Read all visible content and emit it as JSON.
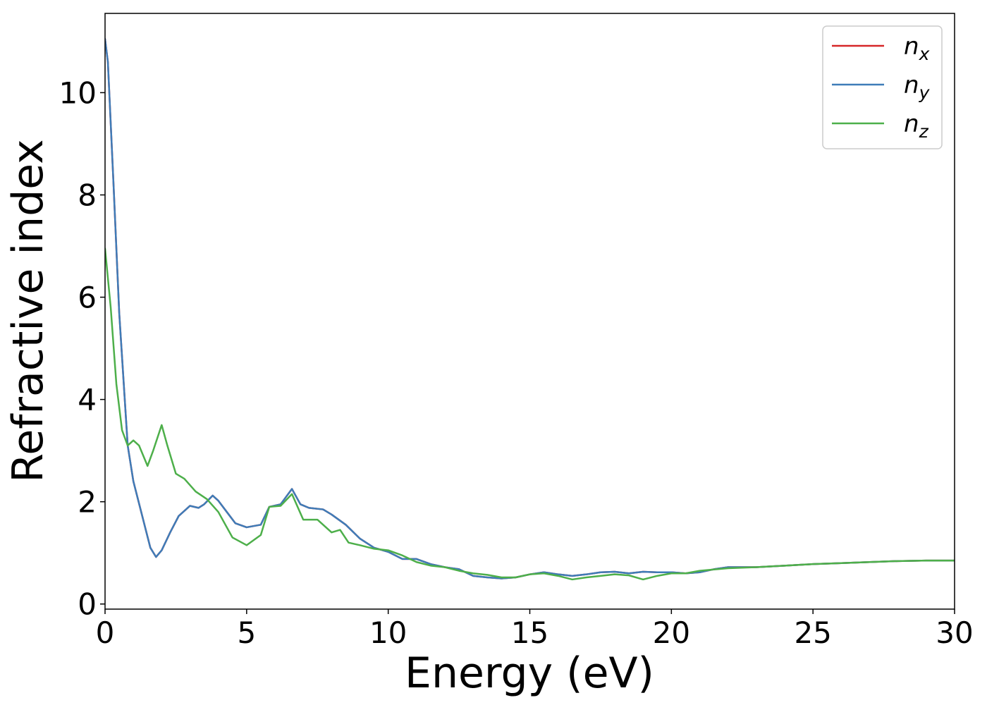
{
  "chart_data": {
    "type": "line",
    "xlabel": "Energy (eV)",
    "ylabel": "Refractive index",
    "xlim": [
      0,
      30
    ],
    "ylim": [
      -0.1,
      11.55
    ],
    "xticks": [
      0,
      5,
      10,
      15,
      20,
      25,
      30
    ],
    "yticks": [
      0,
      2,
      4,
      6,
      8,
      10
    ],
    "grid": false,
    "legend_position": "top-right",
    "series": [
      {
        "name": "n",
        "subscript": "x",
        "color": "#d62728",
        "x": [
          0,
          0.1,
          0.3,
          0.5,
          0.8,
          1.0,
          1.3,
          1.6,
          1.8,
          2.0,
          2.3,
          2.6,
          3.0,
          3.3,
          3.5,
          3.8,
          4.0,
          4.3,
          4.6,
          5.0,
          5.5,
          5.8,
          6.2,
          6.6,
          6.9,
          7.2,
          7.7,
          8.0,
          8.5,
          9.0,
          9.5,
          10.0,
          10.5,
          11.0,
          11.5,
          12.0,
          12.5,
          13.0,
          13.5,
          14.0,
          14.5,
          15.0,
          15.5,
          16.0,
          16.5,
          17.0,
          17.5,
          18.0,
          18.5,
          19.0,
          19.5,
          20.0,
          20.5,
          21.0,
          21.5,
          22.0,
          23.0,
          24.0,
          25.0,
          26.0,
          27.0,
          28.0,
          29.0,
          30.0
        ],
        "values": [
          11.05,
          10.6,
          8.2,
          5.7,
          3.1,
          2.4,
          1.75,
          1.1,
          0.92,
          1.05,
          1.4,
          1.72,
          1.92,
          1.88,
          1.95,
          2.12,
          2.02,
          1.8,
          1.58,
          1.5,
          1.55,
          1.9,
          1.95,
          2.25,
          1.95,
          1.88,
          1.85,
          1.75,
          1.55,
          1.28,
          1.1,
          1.02,
          0.88,
          0.88,
          0.78,
          0.72,
          0.68,
          0.55,
          0.52,
          0.5,
          0.52,
          0.58,
          0.62,
          0.58,
          0.55,
          0.58,
          0.62,
          0.63,
          0.6,
          0.63,
          0.62,
          0.62,
          0.6,
          0.62,
          0.68,
          0.72,
          0.72,
          0.75,
          0.78,
          0.8,
          0.82,
          0.84,
          0.85,
          0.85
        ]
      },
      {
        "name": "n",
        "subscript": "y",
        "color": "#3e7cb8",
        "x": [
          0,
          0.1,
          0.3,
          0.5,
          0.8,
          1.0,
          1.3,
          1.6,
          1.8,
          2.0,
          2.3,
          2.6,
          3.0,
          3.3,
          3.5,
          3.8,
          4.0,
          4.3,
          4.6,
          5.0,
          5.5,
          5.8,
          6.2,
          6.6,
          6.9,
          7.2,
          7.7,
          8.0,
          8.5,
          9.0,
          9.5,
          10.0,
          10.5,
          11.0,
          11.5,
          12.0,
          12.5,
          13.0,
          13.5,
          14.0,
          14.5,
          15.0,
          15.5,
          16.0,
          16.5,
          17.0,
          17.5,
          18.0,
          18.5,
          19.0,
          19.5,
          20.0,
          20.5,
          21.0,
          21.5,
          22.0,
          23.0,
          24.0,
          25.0,
          26.0,
          27.0,
          28.0,
          29.0,
          30.0
        ],
        "values": [
          11.05,
          10.6,
          8.2,
          5.7,
          3.1,
          2.4,
          1.75,
          1.1,
          0.92,
          1.05,
          1.4,
          1.72,
          1.92,
          1.88,
          1.95,
          2.12,
          2.02,
          1.8,
          1.58,
          1.5,
          1.55,
          1.9,
          1.95,
          2.25,
          1.95,
          1.88,
          1.85,
          1.75,
          1.55,
          1.28,
          1.1,
          1.02,
          0.88,
          0.88,
          0.78,
          0.72,
          0.68,
          0.55,
          0.52,
          0.5,
          0.52,
          0.58,
          0.62,
          0.58,
          0.55,
          0.58,
          0.62,
          0.63,
          0.6,
          0.63,
          0.62,
          0.62,
          0.6,
          0.62,
          0.68,
          0.72,
          0.72,
          0.75,
          0.78,
          0.8,
          0.82,
          0.84,
          0.85,
          0.85
        ]
      },
      {
        "name": "n",
        "subscript": "z",
        "color": "#4daf4a",
        "x": [
          0,
          0.2,
          0.4,
          0.6,
          0.8,
          1.0,
          1.2,
          1.5,
          1.7,
          2.0,
          2.2,
          2.5,
          2.8,
          3.2,
          3.6,
          4.0,
          4.5,
          5.0,
          5.5,
          5.8,
          6.2,
          6.6,
          7.0,
          7.5,
          7.8,
          8.0,
          8.3,
          8.6,
          9.0,
          9.5,
          10.0,
          10.5,
          11.0,
          11.5,
          12.0,
          12.5,
          13.0,
          13.5,
          14.0,
          14.5,
          15.0,
          15.5,
          16.0,
          16.5,
          17.0,
          17.5,
          18.0,
          18.5,
          19.0,
          19.5,
          20.0,
          20.5,
          21.0,
          22.0,
          23.0,
          24.0,
          25.0,
          26.0,
          27.0,
          28.0,
          29.0,
          30.0
        ],
        "values": [
          6.95,
          5.8,
          4.3,
          3.4,
          3.1,
          3.2,
          3.1,
          2.7,
          3.0,
          3.5,
          3.1,
          2.55,
          2.45,
          2.2,
          2.05,
          1.8,
          1.3,
          1.15,
          1.35,
          1.9,
          1.92,
          2.15,
          1.65,
          1.65,
          1.5,
          1.4,
          1.45,
          1.2,
          1.15,
          1.08,
          1.05,
          0.95,
          0.82,
          0.75,
          0.72,
          0.65,
          0.6,
          0.57,
          0.52,
          0.52,
          0.58,
          0.6,
          0.55,
          0.48,
          0.52,
          0.55,
          0.58,
          0.56,
          0.48,
          0.55,
          0.6,
          0.6,
          0.65,
          0.7,
          0.72,
          0.75,
          0.78,
          0.8,
          0.82,
          0.84,
          0.85,
          0.85
        ]
      }
    ]
  }
}
